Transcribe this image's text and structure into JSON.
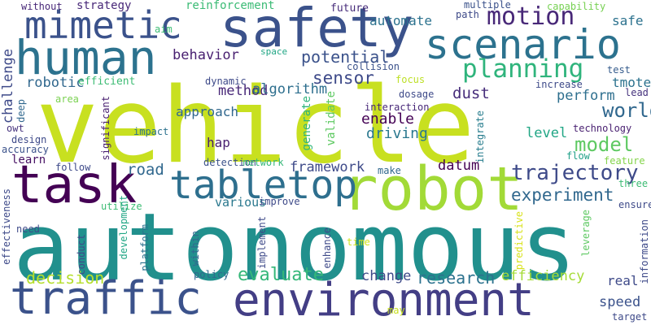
{
  "words": [
    {
      "text": "autonomous",
      "color": "#21908d"
    },
    {
      "text": "vehicle",
      "color": "#c8e020"
    },
    {
      "text": "safety",
      "color": "#3b528b"
    },
    {
      "text": "environment",
      "color": "#433e85"
    },
    {
      "text": "traffic",
      "color": "#3b528b"
    },
    {
      "text": "robot",
      "color": "#a2da37"
    },
    {
      "text": "human",
      "color": "#2c728e"
    },
    {
      "text": "mimetic",
      "color": "#3b528b"
    },
    {
      "text": "scenario",
      "color": "#2c728e"
    },
    {
      "text": "tabletop",
      "color": "#2e6f8e"
    },
    {
      "text": "task",
      "color": "#440154"
    },
    {
      "text": "trajectory",
      "color": "#3e4a89"
    },
    {
      "text": "planning",
      "color": "#2fb47c"
    },
    {
      "text": "motion",
      "color": "#482878"
    },
    {
      "text": "experiment",
      "color": "#31688e"
    },
    {
      "text": "evaluate",
      "color": "#35b779"
    },
    {
      "text": "world",
      "color": "#31688e"
    },
    {
      "text": "research",
      "color": "#2c728e"
    },
    {
      "text": "model",
      "color": "#5ec962"
    },
    {
      "text": "efficiency",
      "color": "#a5db36"
    },
    {
      "text": "decision",
      "color": "#b5de2b"
    },
    {
      "text": "sensor",
      "color": "#3e4a89"
    },
    {
      "text": "potential",
      "color": "#3b528b"
    },
    {
      "text": "enable",
      "color": "#440154"
    },
    {
      "text": "driving",
      "color": "#2a788e"
    },
    {
      "text": "framework",
      "color": "#3e4a89"
    },
    {
      "text": "perform",
      "color": "#2e6f8e"
    },
    {
      "text": "robotic",
      "color": "#31688e"
    },
    {
      "text": "behavior",
      "color": "#481f70"
    },
    {
      "text": "method",
      "color": "#482878"
    },
    {
      "text": "approach",
      "color": "#31688e"
    },
    {
      "text": "dust",
      "color": "#472d7b"
    },
    {
      "text": "road",
      "color": "#31688e"
    },
    {
      "text": "speed",
      "color": "#3b528b"
    },
    {
      "text": "change",
      "color": "#3e4a89"
    },
    {
      "text": "algorithm",
      "color": "#2e6f8e"
    },
    {
      "text": "datum",
      "color": "#440154"
    },
    {
      "text": "level",
      "color": "#21a685"
    },
    {
      "text": "reinforcement",
      "color": "#3bbb75"
    },
    {
      "text": "automate",
      "color": "#2c728e"
    },
    {
      "text": "strategy",
      "color": "#482878"
    },
    {
      "text": "without",
      "color": "#482878"
    },
    {
      "text": "future",
      "color": "#472c7a"
    },
    {
      "text": "multiple",
      "color": "#3b528b"
    },
    {
      "text": "capability",
      "color": "#77d153"
    },
    {
      "text": "safe",
      "color": "#2c728e"
    },
    {
      "text": "challenge",
      "color": "#3e4a89"
    },
    {
      "text": "aim",
      "color": "#3dbc74"
    },
    {
      "text": "space",
      "color": "#21a685"
    },
    {
      "text": "path",
      "color": "#3e4a89"
    },
    {
      "text": "tmote",
      "color": "#2c728e"
    },
    {
      "text": "test",
      "color": "#365c8d"
    },
    {
      "text": "lead",
      "color": "#46337e"
    },
    {
      "text": "efficient",
      "color": "#3dbc74"
    },
    {
      "text": "collision",
      "color": "#3b528b"
    },
    {
      "text": "focus",
      "color": "#bddf26"
    },
    {
      "text": "increase",
      "color": "#3e4a89"
    },
    {
      "text": "dosage",
      "color": "#3e4a89"
    },
    {
      "text": "dynamic",
      "color": "#3e4a89"
    },
    {
      "text": "interaction",
      "color": "#482878"
    },
    {
      "text": "technology",
      "color": "#481f70"
    },
    {
      "text": "deep",
      "color": "#31688e"
    },
    {
      "text": "area",
      "color": "#7ad151"
    },
    {
      "text": "owt",
      "color": "#46337e"
    },
    {
      "text": "design",
      "color": "#3e4a89"
    },
    {
      "text": "accuracy",
      "color": "#3b528b"
    },
    {
      "text": "significant",
      "color": "#481f70"
    },
    {
      "text": "impact",
      "color": "#2c728e"
    },
    {
      "text": "hap",
      "color": "#481f70"
    },
    {
      "text": "generate",
      "color": "#2fb47c"
    },
    {
      "text": "validate",
      "color": "#5ec962"
    },
    {
      "text": "integrate",
      "color": "#287d8e"
    },
    {
      "text": "flow",
      "color": "#1fa088"
    },
    {
      "text": "feature",
      "color": "#84d44b"
    },
    {
      "text": "learn",
      "color": "#471164"
    },
    {
      "text": "follow",
      "color": "#3e4a89"
    },
    {
      "text": "detection",
      "color": "#3b528b"
    },
    {
      "text": "network",
      "color": "#35b779"
    },
    {
      "text": "make",
      "color": "#31688e"
    },
    {
      "text": "three",
      "color": "#3dbc74"
    },
    {
      "text": "ensure",
      "color": "#3e4a89"
    },
    {
      "text": "various",
      "color": "#2a788e"
    },
    {
      "text": "improve",
      "color": "#3e4a89"
    },
    {
      "text": "effectiveness",
      "color": "#3e4a89"
    },
    {
      "text": "need",
      "color": "#3e4a89"
    },
    {
      "text": "utilize",
      "color": "#3dbc74"
    },
    {
      "text": "development",
      "color": "#21a685"
    },
    {
      "text": "conduct",
      "color": "#3e4a89"
    },
    {
      "text": "platform",
      "color": "#2c728e"
    },
    {
      "text": "within",
      "color": "#31688e"
    },
    {
      "text": "implement",
      "color": "#3e4a89"
    },
    {
      "text": "enhance",
      "color": "#3e4a89"
    },
    {
      "text": "time",
      "color": "#d2e21b"
    },
    {
      "text": "predictive",
      "color": "#d8e219"
    },
    {
      "text": "leverage",
      "color": "#5ec962"
    },
    {
      "text": "policy",
      "color": "#31688e"
    },
    {
      "text": "real",
      "color": "#3e4a89"
    },
    {
      "text": "information",
      "color": "#3e4a89"
    },
    {
      "text": "may",
      "color": "#c8e020"
    },
    {
      "text": "target",
      "color": "#3e4a89"
    }
  ]
}
